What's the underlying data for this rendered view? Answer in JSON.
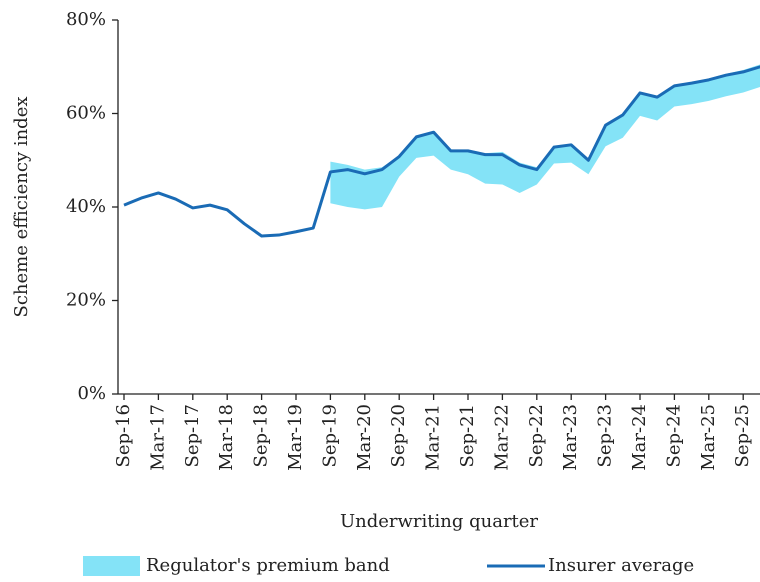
{
  "chart_data": {
    "type": "line",
    "x_label": "Underwriting quarter",
    "y_label": "Scheme efficiency index",
    "categories": [
      "Sep-16",
      null,
      "Mar-17",
      null,
      "Sep-17",
      null,
      "Mar-18",
      null,
      "Sep-18",
      null,
      "Mar-19",
      null,
      "Sep-19",
      null,
      "Mar-20",
      null,
      "Sep-20",
      null,
      "Mar-21",
      null,
      "Sep-21",
      null,
      "Mar-22",
      null,
      "Sep-22",
      null,
      "Mar-23",
      null,
      "Sep-23",
      null,
      "Mar-24",
      null,
      "Sep-24",
      null,
      "Mar-25",
      null,
      "Sep-25",
      null
    ],
    "ylim": [
      0,
      80
    ],
    "yticks": [
      {
        "value": 0,
        "label": "0%"
      },
      {
        "value": 20,
        "label": "20%"
      },
      {
        "value": 40,
        "label": "40%"
      },
      {
        "value": 60,
        "label": "60%"
      },
      {
        "value": 80,
        "label": "80%"
      }
    ],
    "band": {
      "name": "Regulator's premium band",
      "color": "#84e3f7",
      "upper": [
        null,
        null,
        null,
        null,
        null,
        null,
        null,
        null,
        null,
        null,
        null,
        null,
        49.7,
        49,
        48,
        48.5,
        51,
        55,
        56,
        52,
        52,
        51.5,
        51.8,
        49.5,
        48.5,
        53,
        53.5,
        50.3,
        57.7,
        59.9,
        64.5,
        63.8,
        66,
        66.7,
        67.5,
        68.5,
        69.3,
        70.5
      ],
      "lower": [
        null,
        null,
        null,
        null,
        null,
        null,
        null,
        null,
        null,
        null,
        null,
        null,
        40.8,
        40,
        39.5,
        40,
        46.5,
        50.5,
        51,
        48,
        47,
        45,
        44.8,
        43,
        44.8,
        49.3,
        49.5,
        47,
        53,
        54.8,
        59.5,
        58.5,
        61.5,
        62,
        62.7,
        63.7,
        64.5,
        65.7
      ]
    },
    "series": [
      {
        "name": "Insurer average",
        "color": "#1a6bb5",
        "values": [
          40.4,
          41.9,
          43,
          41.7,
          39.8,
          40.4,
          39.4,
          36.4,
          33.8,
          34,
          34.7,
          35.5,
          47.5,
          48,
          47.1,
          48,
          50.8,
          55,
          56,
          52,
          52,
          51.2,
          51.2,
          49,
          48,
          52.8,
          53.3,
          50,
          57.5,
          59.7,
          64.4,
          63.5,
          65.9,
          66.5,
          67.2,
          68.2,
          68.9,
          70
        ]
      }
    ]
  }
}
